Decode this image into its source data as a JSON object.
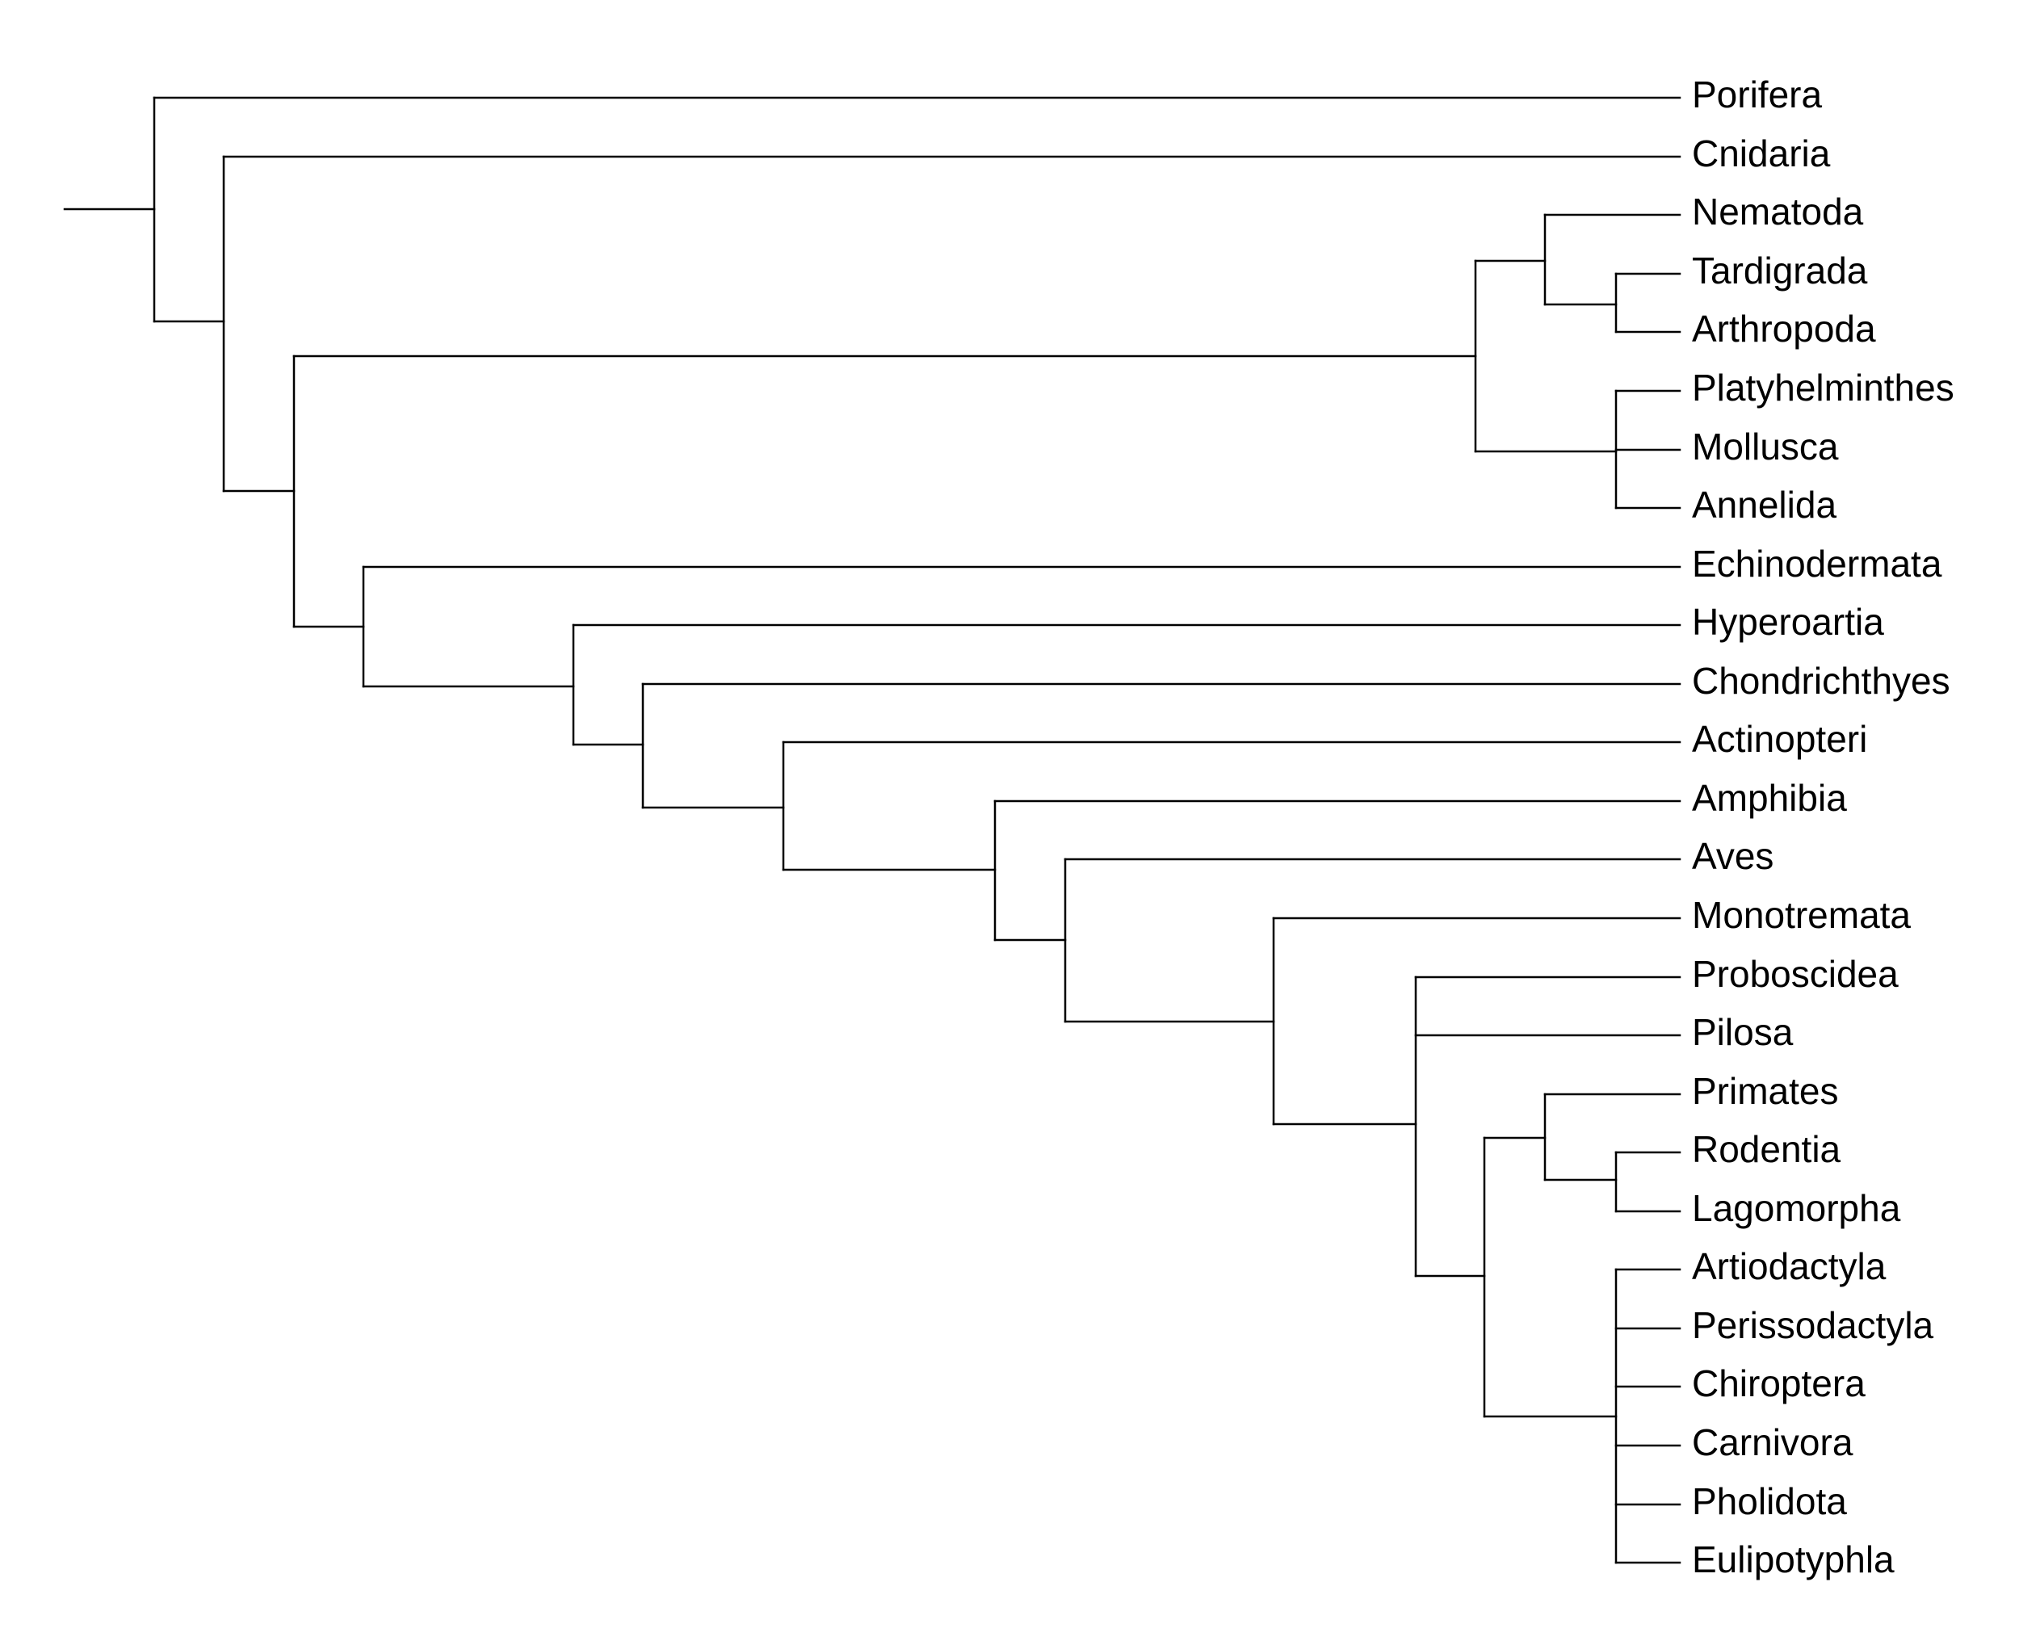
{
  "tree": {
    "taxa": [
      {
        "id": "porifera",
        "label": "Porifera"
      },
      {
        "id": "cnidaria",
        "label": "Cnidaria"
      },
      {
        "id": "nematoda",
        "label": "Nematoda"
      },
      {
        "id": "tardigrada",
        "label": "Tardigrada"
      },
      {
        "id": "arthropoda",
        "label": "Arthropoda"
      },
      {
        "id": "platyhelminthes",
        "label": "Platyhelminthes"
      },
      {
        "id": "mollusca",
        "label": "Mollusca"
      },
      {
        "id": "annelida",
        "label": "Annelida"
      },
      {
        "id": "echinodermata",
        "label": "Echinodermata"
      },
      {
        "id": "hyperoartia",
        "label": "Hyperoartia"
      },
      {
        "id": "chondrichthyes",
        "label": "Chondrichthyes"
      },
      {
        "id": "actinopteri",
        "label": "Actinopteri"
      },
      {
        "id": "amphibia",
        "label": "Amphibia"
      },
      {
        "id": "aves",
        "label": "Aves"
      },
      {
        "id": "monotremata",
        "label": "Monotremata"
      },
      {
        "id": "proboscidea",
        "label": "Proboscidea"
      },
      {
        "id": "pilosa",
        "label": "Pilosa"
      },
      {
        "id": "primates",
        "label": "Primates"
      },
      {
        "id": "rodentia",
        "label": "Rodentia"
      },
      {
        "id": "lagomorpha",
        "label": "Lagomorpha"
      },
      {
        "id": "artiodactyla",
        "label": "Artiodactyla"
      },
      {
        "id": "perissodactyla",
        "label": "Perissodactyla"
      },
      {
        "id": "chiroptera",
        "label": "Chiroptera"
      },
      {
        "id": "carnivora",
        "label": "Carnivora"
      },
      {
        "id": "pholidota",
        "label": "Pholidota"
      },
      {
        "id": "eulipotyphla",
        "label": "Eulipotyphla"
      }
    ],
    "newick": "(Porifera,(Cnidaria,(((Nematoda,(Tardigrada,Arthropoda)),(Platyhelminthes,Mollusca,Annelida)),(Echinodermata,(Hyperoartia,(Chondrichthyes,(Actinopteri,(Amphibia,(Aves,(Monotremata,(Proboscidea,Pilosa,((Primates,(Rodentia,Lagomorpha)),(Artiodactyla,Perissodactyla,Chiroptera,Carnivora,Pholidota,Eulipotyphla)))))))))))));",
    "line_color": "#000000",
    "text_color": "#000000"
  }
}
